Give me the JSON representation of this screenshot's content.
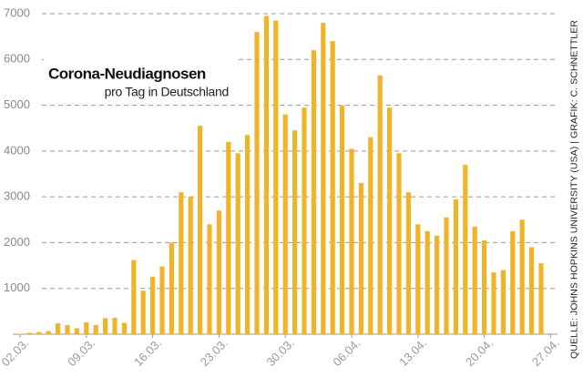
{
  "chart_data": {
    "type": "bar",
    "title": "Corona-Neudiagnosen",
    "subtitle": "pro Tag in Deutschland",
    "source": "QUELLE: JOHNS HOPKINS UNIVERSITY (USA) | GRAFIK: C. SCHNETTLER",
    "categories": [
      "02.03.",
      null,
      null,
      null,
      null,
      null,
      null,
      "09.03.",
      null,
      null,
      null,
      null,
      null,
      null,
      "16.03.",
      null,
      null,
      null,
      null,
      null,
      null,
      "23.03.",
      null,
      null,
      null,
      null,
      null,
      null,
      "30.03.",
      null,
      null,
      null,
      null,
      null,
      null,
      "06.04.",
      null,
      null,
      null,
      null,
      null,
      null,
      "13.04.",
      null,
      null,
      null,
      null,
      null,
      null,
      "20.04.",
      null,
      null,
      null,
      null,
      null,
      null,
      "27.04."
    ],
    "values": [
      10,
      30,
      50,
      70,
      240,
      200,
      130,
      260,
      200,
      350,
      360,
      250,
      1620,
      950,
      1250,
      1480,
      2000,
      3100,
      3000,
      4550,
      2400,
      2700,
      4200,
      3950,
      4350,
      6600,
      6950,
      6850,
      4800,
      4450,
      4950,
      6200,
      6800,
      6400,
      5000,
      4050,
      3300,
      4300,
      5650,
      4950,
      3950,
      3100,
      2400,
      2250,
      2150,
      2550,
      2950,
      3700,
      2350,
      2050,
      1350,
      1400,
      2250,
      2500,
      1900,
      1550,
      null
    ],
    "color": "#f0b429",
    "ylim": [
      0,
      7000
    ],
    "yticks": [
      1000,
      2000,
      3000,
      4000,
      5000,
      6000,
      7000
    ],
    "grid": true
  }
}
